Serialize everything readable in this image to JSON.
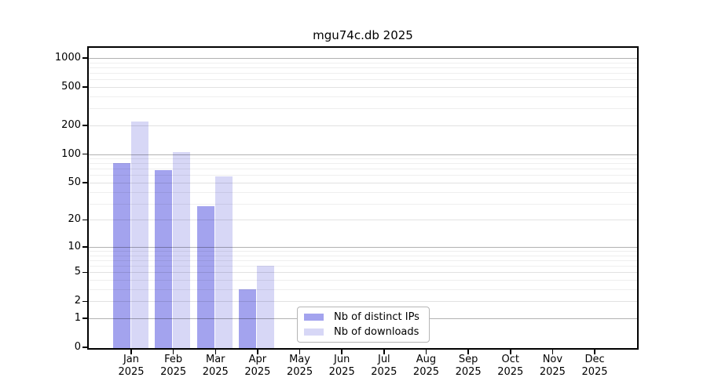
{
  "chart_data": {
    "type": "bar",
    "title": "mgu74c.db 2025",
    "categories": [
      "Jan",
      "Feb",
      "Mar",
      "Apr",
      "May",
      "Jun",
      "Jul",
      "Aug",
      "Sep",
      "Oct",
      "Nov",
      "Dec"
    ],
    "x_sublabel_year": "2025",
    "series": [
      {
        "name": "Nb of distinct IPs",
        "color": "#a3a3ee",
        "values": [
          80,
          68,
          28,
          3,
          0,
          0,
          0,
          0,
          0,
          0,
          0,
          0
        ]
      },
      {
        "name": "Nb of downloads",
        "color": "#d7d7f6",
        "values": [
          220,
          105,
          58,
          6,
          0,
          0,
          0,
          0,
          0,
          0,
          0,
          0
        ]
      }
    ],
    "yticks": [
      0,
      1,
      2,
      5,
      10,
      20,
      50,
      100,
      200,
      500,
      1000
    ],
    "yscale": "log1p",
    "ylim": [
      0,
      1276
    ],
    "grid": true,
    "legend_position": "inside-bottom-center",
    "colors": {
      "decade_gridline": "#b3b3b3",
      "labeled_gridline": "#e3e3e3",
      "minor_gridline": "#efefef",
      "spine": "#000000",
      "background": "#ffffff"
    }
  }
}
